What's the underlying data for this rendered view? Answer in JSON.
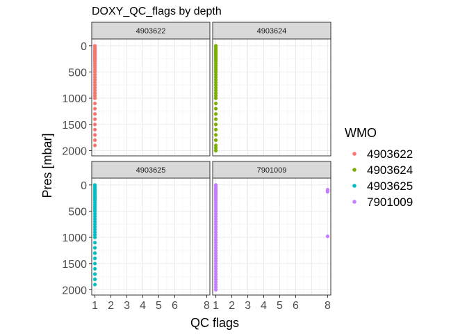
{
  "chart_data": {
    "type": "scatter",
    "title": "DOXY_QC_flags by depth",
    "xlabel": "QC flags",
    "ylabel": "Pres [mbar]",
    "x_ticks": [
      1,
      2,
      3,
      4,
      5,
      6,
      8
    ],
    "y_ticks": [
      0,
      500,
      1000,
      1500,
      2000
    ],
    "xlim": [
      0.8,
      8.2
    ],
    "ylim_reversed": [
      -130,
      2100
    ],
    "grid": true,
    "layout": "facet_wrap 2x2",
    "legend": {
      "title": "WMO",
      "position": "right",
      "entries": [
        "4903622",
        "4903624",
        "4903625",
        "7901009"
      ]
    },
    "series": [
      {
        "name": "4903622",
        "color": "#F8766D",
        "points": [
          {
            "x": 1,
            "y": 0
          },
          {
            "x": 1,
            "y": 30
          },
          {
            "x": 1,
            "y": 60
          },
          {
            "x": 1,
            "y": 90
          },
          {
            "x": 1,
            "y": 120
          },
          {
            "x": 1,
            "y": 150
          },
          {
            "x": 1,
            "y": 180
          },
          {
            "x": 1,
            "y": 210
          },
          {
            "x": 1,
            "y": 240
          },
          {
            "x": 1,
            "y": 270
          },
          {
            "x": 1,
            "y": 300
          },
          {
            "x": 1,
            "y": 340
          },
          {
            "x": 1,
            "y": 380
          },
          {
            "x": 1,
            "y": 420
          },
          {
            "x": 1,
            "y": 460
          },
          {
            "x": 1,
            "y": 500
          },
          {
            "x": 1,
            "y": 550
          },
          {
            "x": 1,
            "y": 600
          },
          {
            "x": 1,
            "y": 650
          },
          {
            "x": 1,
            "y": 700
          },
          {
            "x": 1,
            "y": 750
          },
          {
            "x": 1,
            "y": 800
          },
          {
            "x": 1,
            "y": 850
          },
          {
            "x": 1,
            "y": 900
          },
          {
            "x": 1,
            "y": 950
          },
          {
            "x": 1,
            "y": 1000
          },
          {
            "x": 1,
            "y": 1100
          },
          {
            "x": 1,
            "y": 1200
          },
          {
            "x": 1,
            "y": 1300
          },
          {
            "x": 1,
            "y": 1400
          },
          {
            "x": 1,
            "y": 1500
          },
          {
            "x": 1,
            "y": 1600
          },
          {
            "x": 1,
            "y": 1700
          },
          {
            "x": 1,
            "y": 1800
          },
          {
            "x": 1,
            "y": 1900
          }
        ]
      },
      {
        "name": "4903624",
        "color": "#7CAE00",
        "points": [
          {
            "x": 1,
            "y": 0
          },
          {
            "x": 1,
            "y": 30
          },
          {
            "x": 1,
            "y": 60
          },
          {
            "x": 1,
            "y": 90
          },
          {
            "x": 1,
            "y": 120
          },
          {
            "x": 1,
            "y": 150
          },
          {
            "x": 1,
            "y": 180
          },
          {
            "x": 1,
            "y": 210
          },
          {
            "x": 1,
            "y": 240
          },
          {
            "x": 1,
            "y": 270
          },
          {
            "x": 1,
            "y": 300
          },
          {
            "x": 1,
            "y": 340
          },
          {
            "x": 1,
            "y": 380
          },
          {
            "x": 1,
            "y": 420
          },
          {
            "x": 1,
            "y": 460
          },
          {
            "x": 1,
            "y": 500
          },
          {
            "x": 1,
            "y": 550
          },
          {
            "x": 1,
            "y": 600
          },
          {
            "x": 1,
            "y": 650
          },
          {
            "x": 1,
            "y": 700
          },
          {
            "x": 1,
            "y": 750
          },
          {
            "x": 1,
            "y": 800
          },
          {
            "x": 1,
            "y": 850
          },
          {
            "x": 1,
            "y": 900
          },
          {
            "x": 1,
            "y": 950
          },
          {
            "x": 1,
            "y": 1000
          },
          {
            "x": 1,
            "y": 1100
          },
          {
            "x": 1,
            "y": 1200
          },
          {
            "x": 1,
            "y": 1300
          },
          {
            "x": 1,
            "y": 1400
          },
          {
            "x": 1,
            "y": 1500
          },
          {
            "x": 1,
            "y": 1600
          },
          {
            "x": 1,
            "y": 1700
          },
          {
            "x": 1,
            "y": 1800
          },
          {
            "x": 1,
            "y": 1900
          },
          {
            "x": 1,
            "y": 1950
          },
          {
            "x": 1,
            "y": 2000
          }
        ]
      },
      {
        "name": "4903625",
        "color": "#00BFC4",
        "points": [
          {
            "x": 1,
            "y": 0
          },
          {
            "x": 1,
            "y": 30
          },
          {
            "x": 1,
            "y": 60
          },
          {
            "x": 1,
            "y": 90
          },
          {
            "x": 1,
            "y": 120
          },
          {
            "x": 1,
            "y": 150
          },
          {
            "x": 1,
            "y": 180
          },
          {
            "x": 1,
            "y": 210
          },
          {
            "x": 1,
            "y": 240
          },
          {
            "x": 1,
            "y": 270
          },
          {
            "x": 1,
            "y": 300
          },
          {
            "x": 1,
            "y": 340
          },
          {
            "x": 1,
            "y": 380
          },
          {
            "x": 1,
            "y": 420
          },
          {
            "x": 1,
            "y": 460
          },
          {
            "x": 1,
            "y": 500
          },
          {
            "x": 1,
            "y": 550
          },
          {
            "x": 1,
            "y": 600
          },
          {
            "x": 1,
            "y": 650
          },
          {
            "x": 1,
            "y": 700
          },
          {
            "x": 1,
            "y": 750
          },
          {
            "x": 1,
            "y": 800
          },
          {
            "x": 1,
            "y": 850
          },
          {
            "x": 1,
            "y": 900
          },
          {
            "x": 1,
            "y": 950
          },
          {
            "x": 1,
            "y": 1000
          },
          {
            "x": 1,
            "y": 1100
          },
          {
            "x": 1,
            "y": 1200
          },
          {
            "x": 1,
            "y": 1300
          },
          {
            "x": 1,
            "y": 1400
          },
          {
            "x": 1,
            "y": 1500
          },
          {
            "x": 1,
            "y": 1600
          },
          {
            "x": 1,
            "y": 1700
          },
          {
            "x": 1,
            "y": 1800
          },
          {
            "x": 1,
            "y": 1900
          }
        ]
      },
      {
        "name": "7901009",
        "color": "#C77CFF",
        "points": [
          {
            "x": 1,
            "y": 0
          },
          {
            "x": 1,
            "y": 30
          },
          {
            "x": 1,
            "y": 60
          },
          {
            "x": 1,
            "y": 90
          },
          {
            "x": 1,
            "y": 120
          },
          {
            "x": 1,
            "y": 150
          },
          {
            "x": 1,
            "y": 180
          },
          {
            "x": 1,
            "y": 210
          },
          {
            "x": 1,
            "y": 240
          },
          {
            "x": 1,
            "y": 270
          },
          {
            "x": 1,
            "y": 300
          },
          {
            "x": 1,
            "y": 340
          },
          {
            "x": 1,
            "y": 380
          },
          {
            "x": 1,
            "y": 420
          },
          {
            "x": 1,
            "y": 460
          },
          {
            "x": 1,
            "y": 500
          },
          {
            "x": 1,
            "y": 550
          },
          {
            "x": 1,
            "y": 600
          },
          {
            "x": 1,
            "y": 650
          },
          {
            "x": 1,
            "y": 700
          },
          {
            "x": 1,
            "y": 750
          },
          {
            "x": 1,
            "y": 800
          },
          {
            "x": 1,
            "y": 850
          },
          {
            "x": 1,
            "y": 900
          },
          {
            "x": 1,
            "y": 950
          },
          {
            "x": 1,
            "y": 1000
          },
          {
            "x": 1,
            "y": 1050
          },
          {
            "x": 1,
            "y": 1100
          },
          {
            "x": 1,
            "y": 1150
          },
          {
            "x": 1,
            "y": 1200
          },
          {
            "x": 1,
            "y": 1250
          },
          {
            "x": 1,
            "y": 1300
          },
          {
            "x": 1,
            "y": 1350
          },
          {
            "x": 1,
            "y": 1400
          },
          {
            "x": 1,
            "y": 1450
          },
          {
            "x": 1,
            "y": 1500
          },
          {
            "x": 1,
            "y": 1550
          },
          {
            "x": 1,
            "y": 1600
          },
          {
            "x": 1,
            "y": 1650
          },
          {
            "x": 1,
            "y": 1700
          },
          {
            "x": 1,
            "y": 1750
          },
          {
            "x": 1,
            "y": 1800
          },
          {
            "x": 1,
            "y": 1850
          },
          {
            "x": 1,
            "y": 1900
          },
          {
            "x": 1,
            "y": 1950
          },
          {
            "x": 1,
            "y": 2000
          },
          {
            "x": 8,
            "y": 90
          },
          {
            "x": 8,
            "y": 110
          },
          {
            "x": 8,
            "y": 130
          },
          {
            "x": 8,
            "y": 980
          }
        ]
      }
    ]
  }
}
